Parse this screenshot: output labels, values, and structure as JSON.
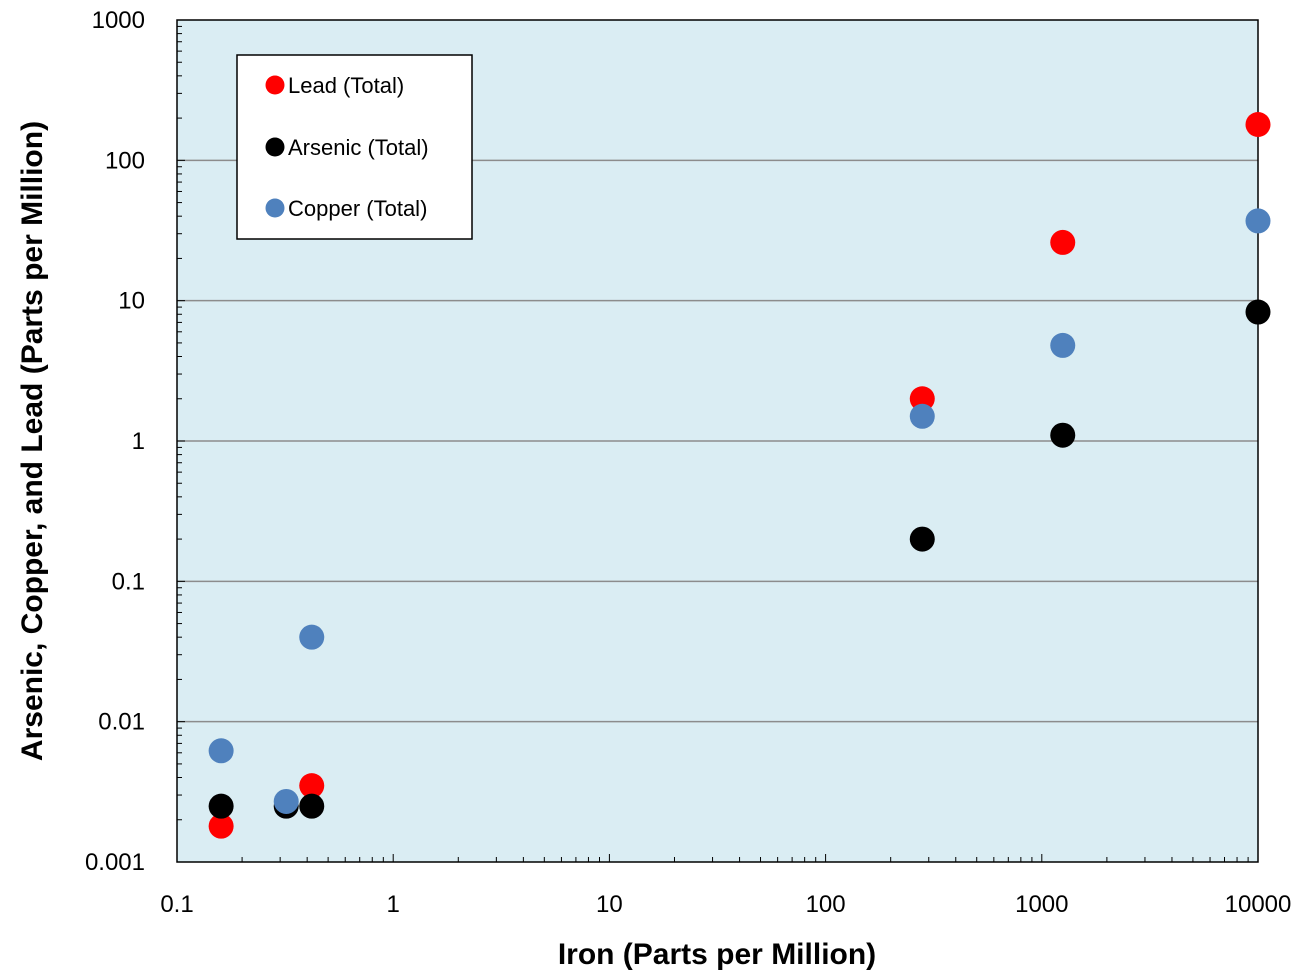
{
  "chart_data": {
    "type": "scatter",
    "title": "",
    "xlabel": "Iron (Parts per Million)",
    "ylabel": "Arsenic, Copper, and Lead (Parts per Million)",
    "x_scale": "log",
    "y_scale": "log",
    "xlim": [
      0.1,
      10000
    ],
    "ylim": [
      0.001,
      1000
    ],
    "x_ticks": [
      0.1,
      1,
      10,
      100,
      1000,
      10000
    ],
    "x_tick_labels": [
      "0.1",
      "1",
      "10",
      "100",
      "1000",
      "10000"
    ],
    "y_ticks": [
      0.001,
      0.01,
      0.1,
      1,
      10,
      100,
      1000
    ],
    "y_tick_labels": [
      "0.001",
      "0.01",
      "0.1",
      "1",
      "10",
      "100",
      "1000"
    ],
    "grid": "horizontal major",
    "legend_position": "top-left",
    "background_color": "#daedf3",
    "series": [
      {
        "name": "Lead (Total)",
        "color": "#ff0000",
        "points": [
          {
            "x": 0.16,
            "y": 0.0018
          },
          {
            "x": 0.42,
            "y": 0.0035
          },
          {
            "x": 280,
            "y": 2.0
          },
          {
            "x": 1250,
            "y": 26
          },
          {
            "x": 10000,
            "y": 180
          }
        ]
      },
      {
        "name": "Arsenic (Total)",
        "color": "#000000",
        "points": [
          {
            "x": 0.16,
            "y": 0.0025
          },
          {
            "x": 0.32,
            "y": 0.0025
          },
          {
            "x": 0.42,
            "y": 0.0025
          },
          {
            "x": 280,
            "y": 0.2
          },
          {
            "x": 1250,
            "y": 1.1
          },
          {
            "x": 10000,
            "y": 8.3
          }
        ]
      },
      {
        "name": "Copper (Total)",
        "color": "#4f81bd",
        "points": [
          {
            "x": 0.16,
            "y": 0.0062
          },
          {
            "x": 0.32,
            "y": 0.0027
          },
          {
            "x": 0.42,
            "y": 0.04
          },
          {
            "x": 280,
            "y": 1.5
          },
          {
            "x": 1250,
            "y": 4.8
          },
          {
            "x": 10000,
            "y": 37
          }
        ]
      }
    ]
  }
}
